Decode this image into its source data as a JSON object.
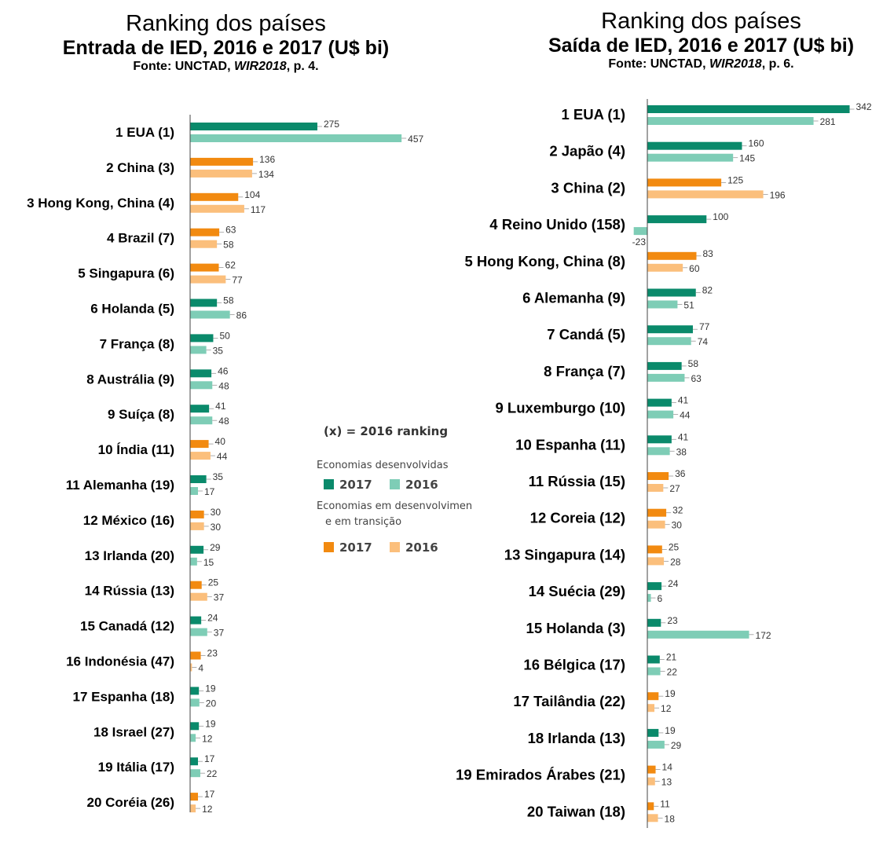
{
  "left_header": {
    "title": "Ranking dos países",
    "subtitle": "Entrada de IED, 2016 e 2017 (U$ bi)",
    "source_prefix": "Fonte: UNCTAD, ",
    "source_italic": "WIR2018",
    "source_suffix": ", p. 4."
  },
  "right_header": {
    "title": "Ranking dos países",
    "subtitle": "Saída de IED, 2016 e 2017 (U$ bi)",
    "source_prefix": "Fonte: UNCTAD, ",
    "source_italic": "WIR2018",
    "source_suffix": ", p. 6."
  },
  "legend": {
    "note": "(x) = 2016 ranking",
    "group_developed": "Economias  desenvolvidas",
    "group_developing_line1": "Economias em desenvolvimen",
    "group_developing_line2": "e em transição",
    "label_2017": "2017",
    "label_2016": "2016"
  },
  "colors": {
    "developed_2017": "#0a8a6b",
    "developed_2016": "#7ecdb6",
    "developing_2017": "#f28a10",
    "developing_2016": "#fbbf7c"
  },
  "chart_data": [
    {
      "type": "bar",
      "orientation": "horizontal",
      "title": "Entrada de IED, 2016 e 2017 (U$ bi)",
      "categories": [
        "1 EUA (1)",
        "2 China (3)",
        "3 Hong Kong, China (4)",
        "4 Brazil (7)",
        "5 Singapura (6)",
        "6 Holanda (5)",
        "7  França (8)",
        "8 Austrália (9)",
        "9 Suíça (8)",
        "10 Índia (11)",
        "11 Alemanha (19)",
        "12 México (16)",
        "13 Irlanda (20)",
        "14 Rússia (13)",
        "15 Canadá (12)",
        "16 Indonésia (47)",
        "17 Espanha (18)",
        "18 Israel (27)",
        "19 Itália (17)",
        "20 Coréia (26)"
      ],
      "group": [
        "developed",
        "developing",
        "developing",
        "developing",
        "developing",
        "developed",
        "developed",
        "developed",
        "developed",
        "developing",
        "developed",
        "developing",
        "developed",
        "developing",
        "developed",
        "developing",
        "developed",
        "developed",
        "developed",
        "developing"
      ],
      "series": [
        {
          "name": "2017",
          "values": [
            275,
            136,
            104,
            63,
            62,
            58,
            50,
            46,
            41,
            40,
            35,
            30,
            29,
            25,
            24,
            23,
            19,
            19,
            17,
            17
          ]
        },
        {
          "name": "2016",
          "values": [
            457,
            134,
            117,
            58,
            77,
            86,
            35,
            48,
            48,
            44,
            17,
            30,
            15,
            37,
            37,
            4,
            20,
            12,
            22,
            12
          ]
        }
      ]
    },
    {
      "type": "bar",
      "orientation": "horizontal",
      "title": "Saída de IED, 2016 e 2017 (U$ bi)",
      "categories": [
        "1 EUA (1)",
        "2 Japão (4)",
        "3 China (2)",
        "4 Reino Unido (158)",
        "5 Hong Kong, China  (8)",
        "6 Alemanha (9)",
        "7 Candá (5)",
        "8 França (7)",
        "9 Luxemburgo (10)",
        "10 Espanha (11)",
        "11 Rússia (15)",
        "12 Coreia (12)",
        "13 Singapura (14)",
        "14 Suécia  (29)",
        "15 Holanda (3)",
        "16 Bélgica (17)",
        "17 Tailândia (22)",
        "18 Irlanda (13)",
        "19 Emirados Árabes (21)",
        "20 Taiwan (18)"
      ],
      "group": [
        "developed",
        "developed",
        "developing",
        "developed",
        "developing",
        "developed",
        "developed",
        "developed",
        "developed",
        "developed",
        "developing",
        "developing",
        "developing",
        "developed",
        "developed",
        "developed",
        "developing",
        "developed",
        "developing",
        "developing"
      ],
      "series": [
        {
          "name": "2017",
          "values": [
            342,
            160,
            125,
            100,
            83,
            82,
            77,
            58,
            41,
            41,
            36,
            32,
            25,
            24,
            23,
            21,
            19,
            19,
            14,
            11
          ]
        },
        {
          "name": "2016",
          "values": [
            281,
            145,
            196,
            -23,
            60,
            51,
            74,
            63,
            44,
            38,
            27,
            30,
            28,
            6,
            172,
            22,
            12,
            29,
            13,
            18
          ]
        }
      ]
    }
  ]
}
